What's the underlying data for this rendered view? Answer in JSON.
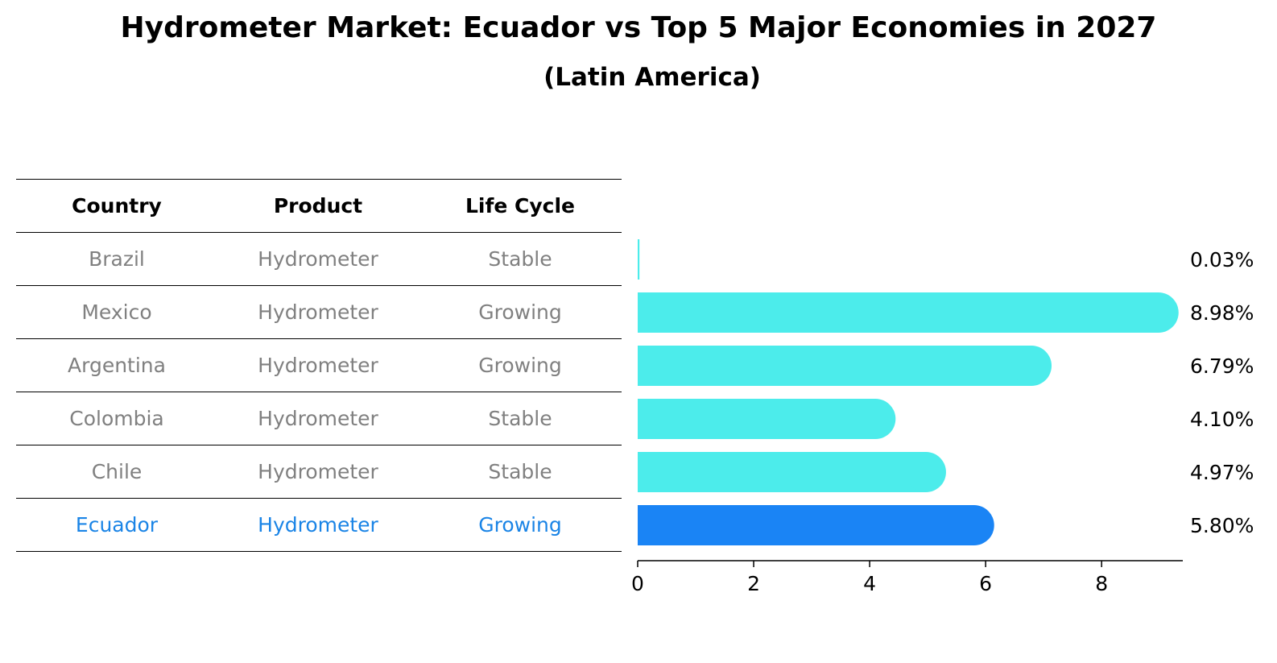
{
  "title": "Hydrometer Market: Ecuador vs Top 5 Major Economies in 2027",
  "subtitle": "(Latin America)",
  "table": {
    "headers": [
      "Country",
      "Product",
      "Life Cycle"
    ],
    "rows": [
      {
        "country": "Brazil",
        "product": "Hydrometer",
        "life_cycle": "Stable",
        "highlight": false
      },
      {
        "country": "Mexico",
        "product": "Hydrometer",
        "life_cycle": "Growing",
        "highlight": false
      },
      {
        "country": "Argentina",
        "product": "Hydrometer",
        "life_cycle": "Growing",
        "highlight": false
      },
      {
        "country": "Colombia",
        "product": "Hydrometer",
        "life_cycle": "Stable",
        "highlight": false
      },
      {
        "country": "Chile",
        "product": "Hydrometer",
        "life_cycle": "Stable",
        "highlight": false
      },
      {
        "country": "Ecuador",
        "product": "Hydrometer",
        "life_cycle": "Growing",
        "highlight": true
      }
    ]
  },
  "colors": {
    "default_text": "#808080",
    "highlight_text": "#1a84e6",
    "bar_default": "#4ceceb",
    "bar_highlight": "#1a84f5"
  },
  "chart_data": {
    "type": "bar",
    "orientation": "horizontal",
    "categories": [
      "Brazil",
      "Mexico",
      "Argentina",
      "Colombia",
      "Chile",
      "Ecuador"
    ],
    "values": [
      0.03,
      8.98,
      6.79,
      4.1,
      4.97,
      5.8
    ],
    "value_labels": [
      "0.03%",
      "8.98%",
      "6.79%",
      "4.10%",
      "4.97%",
      "5.80%"
    ],
    "highlight": "Ecuador",
    "xlim": [
      0,
      9.4
    ],
    "xticks": [
      0,
      2,
      4,
      6,
      8
    ],
    "xlabel": "",
    "ylabel": "",
    "grid": false
  }
}
